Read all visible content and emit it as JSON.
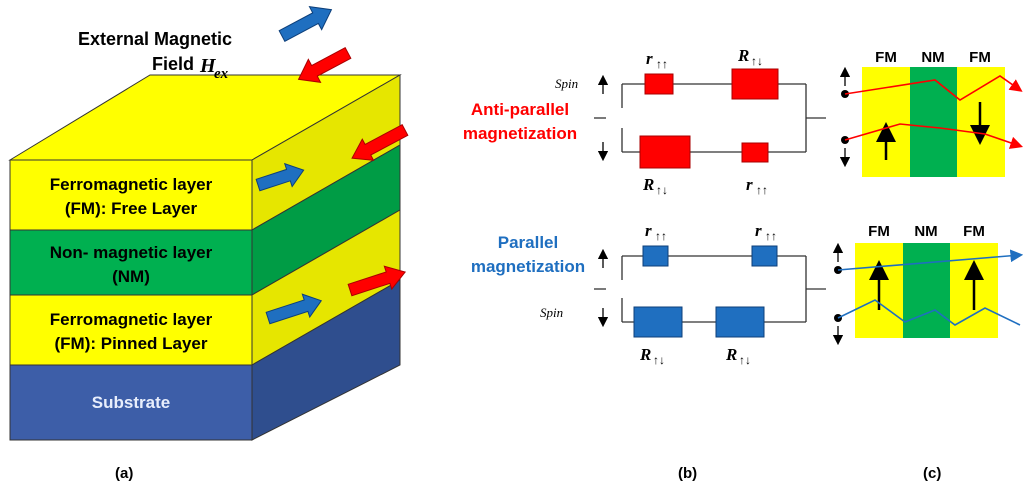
{
  "panel_a": {
    "external_field_line1": "External Magnetic",
    "external_field_line2": "Field",
    "field_symbol": "H",
    "field_subscript": "ex",
    "free_layer_line1": "Ferromagnetic layer",
    "free_layer_line2": "(FM): Free Layer",
    "nonmag_line1": "Non- magnetic layer",
    "nonmag_line2": "(NM)",
    "pinned_line1": "Ferromagnetic layer",
    "pinned_line2": "(FM): Pinned Layer",
    "substrate": "Substrate",
    "caption": "(a)",
    "colors": {
      "yellow": "#ffff00",
      "green": "#00b050",
      "substrate": "#3d5ea8",
      "blue_arrow": "#1f6fc0",
      "red_arrow": "#ff0000"
    }
  },
  "panel_b": {
    "antiparallel_line1": "Anti-parallel",
    "antiparallel_line2": "magnetization",
    "parallel_line1": "Parallel",
    "parallel_line2": "magnetization",
    "spin_top": "Spin",
    "spin_bottom": "Spin",
    "r_small": "r",
    "r_small_sub": "↑↑",
    "r_large": "R",
    "r_large_sub": "↑↓",
    "caption": "(b)",
    "colors": {
      "antiparallel": "#ff0000",
      "parallel": "#1f6fc0",
      "resistor_red": "#ff0000",
      "resistor_blue": "#1f6fc0"
    }
  },
  "panel_c": {
    "fm_left": "FM",
    "nm": "NM",
    "fm_right": "FM",
    "caption": "(c)",
    "colors": {
      "yellow": "#ffff00",
      "green": "#00b050"
    }
  }
}
